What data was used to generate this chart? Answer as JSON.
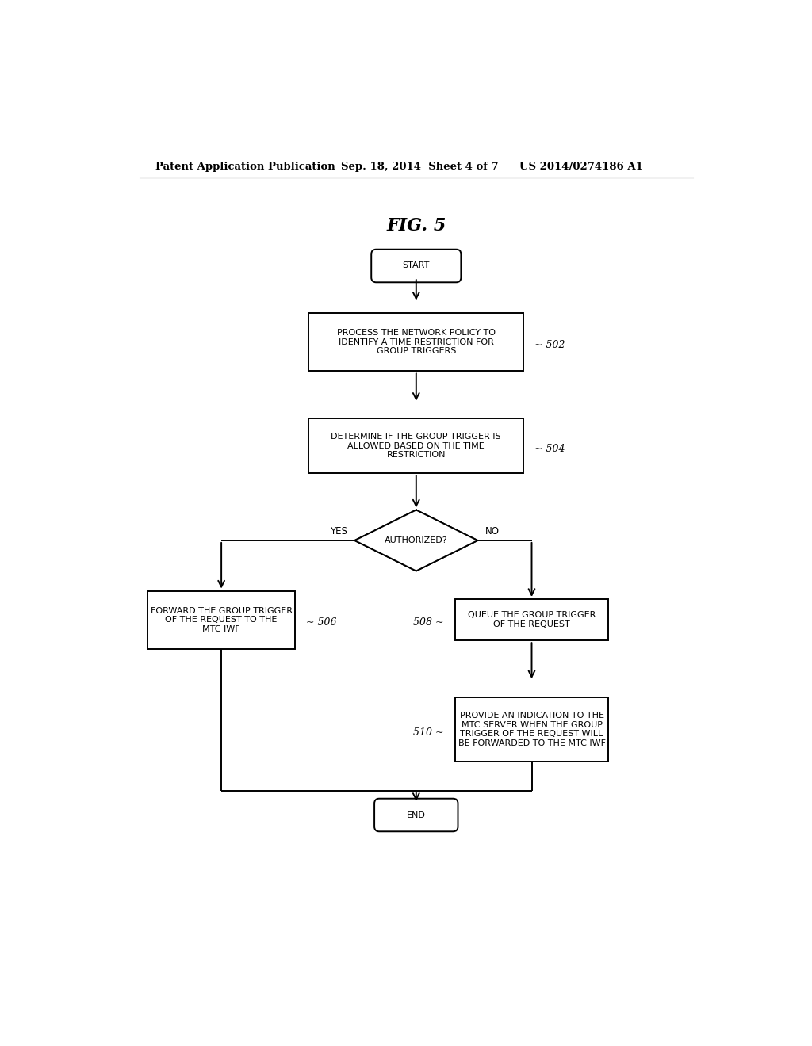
{
  "bg_color": "#ffffff",
  "header_left": "Patent Application Publication",
  "header_center": "Sep. 18, 2014  Sheet 4 of 7",
  "header_right": "US 2014/0274186 A1",
  "fig_title": "FIG. 5",
  "start_label": "START",
  "end_label": "END",
  "box502_label": "PROCESS THE NETWORK POLICY TO\nIDENTIFY A TIME RESTRICTION FOR\nGROUP TRIGGERS",
  "box504_label": "DETERMINE IF THE GROUP TRIGGER IS\nALLOWED BASED ON THE TIME\nRESTRICTION",
  "diamond_label": "AUTHORIZED?",
  "box506_label": "FORWARD THE GROUP TRIGGER\nOF THE REQUEST TO THE\nMTC IWF",
  "box508_label": "QUEUE THE GROUP TRIGGER\nOF THE REQUEST",
  "box510_label": "PROVIDE AN INDICATION TO THE\nMTC SERVER WHEN THE GROUP\nTRIGGER OF THE REQUEST WILL\nBE FORWARDED TO THE MTC IWF",
  "ref502": "~ 502",
  "ref504": "~ 504",
  "ref506": "~ 506",
  "ref508": "508 ~",
  "ref510": "510 ~",
  "yes_label": "YES",
  "no_label": "NO",
  "lw": 1.4,
  "font_size_node": 8.0,
  "font_size_ref": 9.0,
  "font_size_title": 16,
  "font_size_header": 9.5,
  "font_size_label": 8.5
}
